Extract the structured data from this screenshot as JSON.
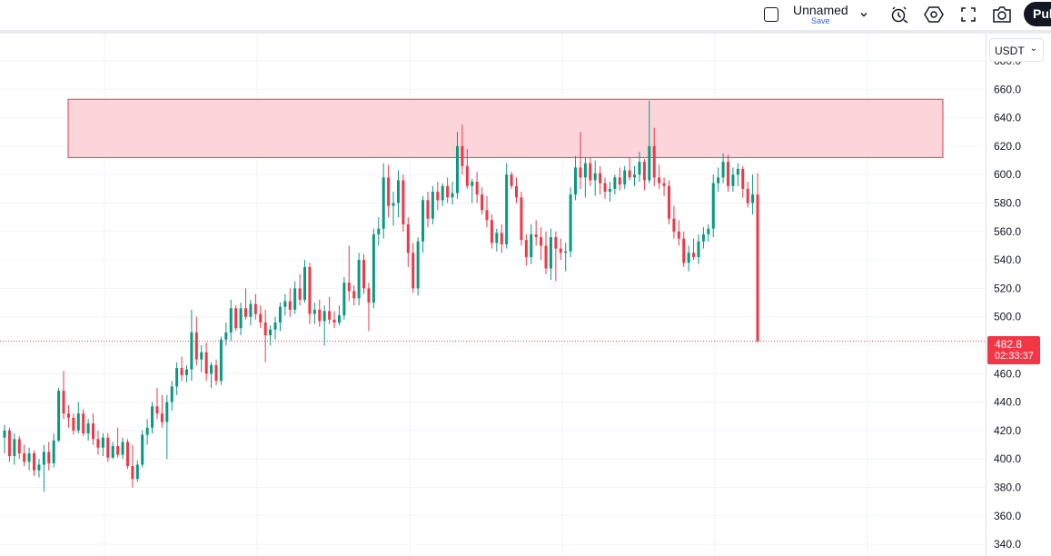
{
  "header": {
    "layout_name": "Unnamed",
    "save_label": "Save",
    "publish_label": "Pul",
    "icons": [
      "square-icon",
      "chevron-down-icon",
      "alert-add-icon",
      "settings-hexagon-icon",
      "fullscreen-icon",
      "camera-icon"
    ]
  },
  "currency_selector": {
    "label": "USDT"
  },
  "last_price": {
    "price": "482.8",
    "countdown": "02:33:37"
  },
  "colors": {
    "up": "#089981",
    "down": "#f23645",
    "zone_fill": "#fbd5d9",
    "zone_border": "#e0404f",
    "grid": "#f0f3fa",
    "accent_blue": "#2962ff"
  },
  "chart_data": {
    "type": "candlestick",
    "y_axis": {
      "ticks": [
        "680.0",
        "660.0",
        "640.0",
        "620.0",
        "600.0",
        "580.0",
        "560.0",
        "540.0",
        "520.0",
        "500.0",
        "480.0",
        "460.0",
        "440.0",
        "420.0",
        "400.0",
        "380.0",
        "360.0",
        "340.0"
      ],
      "range": [
        335,
        685
      ],
      "side": "right"
    },
    "resistance_zone": {
      "low": 612,
      "high": 653,
      "color": "#fbd5d9"
    },
    "last_price_line": 482.8,
    "candles": [
      {
        "o": 415,
        "h": 424,
        "l": 404,
        "c": 420
      },
      {
        "o": 420,
        "h": 422,
        "l": 398,
        "c": 402
      },
      {
        "o": 402,
        "h": 418,
        "l": 396,
        "c": 414
      },
      {
        "o": 414,
        "h": 416,
        "l": 400,
        "c": 404
      },
      {
        "o": 404,
        "h": 410,
        "l": 395,
        "c": 398
      },
      {
        "o": 398,
        "h": 408,
        "l": 392,
        "c": 404
      },
      {
        "o": 404,
        "h": 406,
        "l": 388,
        "c": 392
      },
      {
        "o": 392,
        "h": 400,
        "l": 387,
        "c": 396
      },
      {
        "o": 396,
        "h": 410,
        "l": 377,
        "c": 405
      },
      {
        "o": 405,
        "h": 412,
        "l": 392,
        "c": 397
      },
      {
        "o": 397,
        "h": 418,
        "l": 394,
        "c": 413
      },
      {
        "o": 413,
        "h": 450,
        "l": 412,
        "c": 448
      },
      {
        "o": 448,
        "h": 462,
        "l": 428,
        "c": 432
      },
      {
        "o": 432,
        "h": 438,
        "l": 422,
        "c": 429
      },
      {
        "o": 429,
        "h": 432,
        "l": 417,
        "c": 420
      },
      {
        "o": 420,
        "h": 440,
        "l": 418,
        "c": 432
      },
      {
        "o": 432,
        "h": 435,
        "l": 416,
        "c": 418
      },
      {
        "o": 418,
        "h": 428,
        "l": 413,
        "c": 425
      },
      {
        "o": 425,
        "h": 432,
        "l": 410,
        "c": 414
      },
      {
        "o": 414,
        "h": 420,
        "l": 403,
        "c": 408
      },
      {
        "o": 408,
        "h": 418,
        "l": 402,
        "c": 415
      },
      {
        "o": 415,
        "h": 418,
        "l": 398,
        "c": 401
      },
      {
        "o": 401,
        "h": 412,
        "l": 400,
        "c": 409
      },
      {
        "o": 409,
        "h": 422,
        "l": 401,
        "c": 403
      },
      {
        "o": 403,
        "h": 415,
        "l": 400,
        "c": 412
      },
      {
        "o": 412,
        "h": 414,
        "l": 393,
        "c": 395
      },
      {
        "o": 395,
        "h": 410,
        "l": 380,
        "c": 386
      },
      {
        "o": 386,
        "h": 399,
        "l": 384,
        "c": 396
      },
      {
        "o": 396,
        "h": 420,
        "l": 394,
        "c": 417
      },
      {
        "o": 417,
        "h": 428,
        "l": 410,
        "c": 422
      },
      {
        "o": 422,
        "h": 440,
        "l": 418,
        "c": 437
      },
      {
        "o": 437,
        "h": 450,
        "l": 428,
        "c": 432
      },
      {
        "o": 432,
        "h": 445,
        "l": 422,
        "c": 426
      },
      {
        "o": 426,
        "h": 445,
        "l": 400,
        "c": 440
      },
      {
        "o": 440,
        "h": 455,
        "l": 434,
        "c": 451
      },
      {
        "o": 451,
        "h": 468,
        "l": 445,
        "c": 464
      },
      {
        "o": 464,
        "h": 472,
        "l": 455,
        "c": 459
      },
      {
        "o": 459,
        "h": 466,
        "l": 454,
        "c": 463
      },
      {
        "o": 463,
        "h": 505,
        "l": 455,
        "c": 489
      },
      {
        "o": 489,
        "h": 500,
        "l": 466,
        "c": 470
      },
      {
        "o": 470,
        "h": 480,
        "l": 461,
        "c": 475
      },
      {
        "o": 475,
        "h": 482,
        "l": 455,
        "c": 460
      },
      {
        "o": 460,
        "h": 468,
        "l": 450,
        "c": 466
      },
      {
        "o": 466,
        "h": 470,
        "l": 452,
        "c": 455
      },
      {
        "o": 455,
        "h": 486,
        "l": 452,
        "c": 484
      },
      {
        "o": 484,
        "h": 496,
        "l": 480,
        "c": 489
      },
      {
        "o": 489,
        "h": 512,
        "l": 483,
        "c": 506
      },
      {
        "o": 506,
        "h": 508,
        "l": 490,
        "c": 492
      },
      {
        "o": 492,
        "h": 510,
        "l": 487,
        "c": 506
      },
      {
        "o": 506,
        "h": 520,
        "l": 498,
        "c": 500
      },
      {
        "o": 500,
        "h": 512,
        "l": 494,
        "c": 509
      },
      {
        "o": 509,
        "h": 516,
        "l": 498,
        "c": 502
      },
      {
        "o": 502,
        "h": 508,
        "l": 492,
        "c": 496
      },
      {
        "o": 496,
        "h": 505,
        "l": 468,
        "c": 487
      },
      {
        "o": 487,
        "h": 494,
        "l": 480,
        "c": 491
      },
      {
        "o": 491,
        "h": 500,
        "l": 484,
        "c": 496
      },
      {
        "o": 496,
        "h": 510,
        "l": 490,
        "c": 507
      },
      {
        "o": 507,
        "h": 516,
        "l": 501,
        "c": 511
      },
      {
        "o": 511,
        "h": 520,
        "l": 500,
        "c": 505
      },
      {
        "o": 505,
        "h": 525,
        "l": 502,
        "c": 520
      },
      {
        "o": 520,
        "h": 530,
        "l": 508,
        "c": 512
      },
      {
        "o": 512,
        "h": 540,
        "l": 510,
        "c": 535
      },
      {
        "o": 535,
        "h": 538,
        "l": 495,
        "c": 502
      },
      {
        "o": 502,
        "h": 510,
        "l": 495,
        "c": 505
      },
      {
        "o": 505,
        "h": 512,
        "l": 493,
        "c": 497
      },
      {
        "o": 497,
        "h": 508,
        "l": 480,
        "c": 504
      },
      {
        "o": 504,
        "h": 514,
        "l": 495,
        "c": 498
      },
      {
        "o": 498,
        "h": 504,
        "l": 492,
        "c": 496
      },
      {
        "o": 496,
        "h": 508,
        "l": 494,
        "c": 501
      },
      {
        "o": 501,
        "h": 528,
        "l": 498,
        "c": 524
      },
      {
        "o": 524,
        "h": 550,
        "l": 511,
        "c": 518
      },
      {
        "o": 518,
        "h": 522,
        "l": 508,
        "c": 513
      },
      {
        "o": 513,
        "h": 545,
        "l": 508,
        "c": 540
      },
      {
        "o": 540,
        "h": 544,
        "l": 516,
        "c": 520
      },
      {
        "o": 520,
        "h": 524,
        "l": 490,
        "c": 510
      },
      {
        "o": 510,
        "h": 562,
        "l": 506,
        "c": 558
      },
      {
        "o": 558,
        "h": 570,
        "l": 550,
        "c": 562
      },
      {
        "o": 562,
        "h": 608,
        "l": 555,
        "c": 598
      },
      {
        "o": 598,
        "h": 607,
        "l": 570,
        "c": 578
      },
      {
        "o": 578,
        "h": 588,
        "l": 564,
        "c": 580
      },
      {
        "o": 580,
        "h": 603,
        "l": 570,
        "c": 596
      },
      {
        "o": 596,
        "h": 600,
        "l": 560,
        "c": 565
      },
      {
        "o": 565,
        "h": 570,
        "l": 535,
        "c": 545
      },
      {
        "o": 545,
        "h": 552,
        "l": 517,
        "c": 520
      },
      {
        "o": 520,
        "h": 556,
        "l": 515,
        "c": 553
      },
      {
        "o": 553,
        "h": 585,
        "l": 545,
        "c": 582
      },
      {
        "o": 582,
        "h": 588,
        "l": 563,
        "c": 569
      },
      {
        "o": 569,
        "h": 592,
        "l": 565,
        "c": 588
      },
      {
        "o": 588,
        "h": 595,
        "l": 575,
        "c": 582
      },
      {
        "o": 582,
        "h": 594,
        "l": 578,
        "c": 592
      },
      {
        "o": 592,
        "h": 598,
        "l": 580,
        "c": 584
      },
      {
        "o": 584,
        "h": 595,
        "l": 579,
        "c": 587
      },
      {
        "o": 587,
        "h": 630,
        "l": 583,
        "c": 620
      },
      {
        "o": 620,
        "h": 635,
        "l": 600,
        "c": 606
      },
      {
        "o": 606,
        "h": 618,
        "l": 590,
        "c": 592
      },
      {
        "o": 592,
        "h": 597,
        "l": 580,
        "c": 595
      },
      {
        "o": 595,
        "h": 602,
        "l": 580,
        "c": 586
      },
      {
        "o": 586,
        "h": 591,
        "l": 572,
        "c": 575
      },
      {
        "o": 575,
        "h": 585,
        "l": 563,
        "c": 568
      },
      {
        "o": 568,
        "h": 572,
        "l": 548,
        "c": 552
      },
      {
        "o": 552,
        "h": 562,
        "l": 546,
        "c": 559
      },
      {
        "o": 559,
        "h": 565,
        "l": 545,
        "c": 551
      },
      {
        "o": 551,
        "h": 608,
        "l": 548,
        "c": 600
      },
      {
        "o": 600,
        "h": 602,
        "l": 590,
        "c": 592
      },
      {
        "o": 592,
        "h": 598,
        "l": 580,
        "c": 584
      },
      {
        "o": 584,
        "h": 588,
        "l": 550,
        "c": 554
      },
      {
        "o": 554,
        "h": 558,
        "l": 536,
        "c": 542
      },
      {
        "o": 542,
        "h": 565,
        "l": 537,
        "c": 558
      },
      {
        "o": 558,
        "h": 568,
        "l": 550,
        "c": 556
      },
      {
        "o": 556,
        "h": 563,
        "l": 540,
        "c": 550
      },
      {
        "o": 550,
        "h": 560,
        "l": 530,
        "c": 534
      },
      {
        "o": 534,
        "h": 562,
        "l": 526,
        "c": 556
      },
      {
        "o": 556,
        "h": 560,
        "l": 525,
        "c": 548
      },
      {
        "o": 548,
        "h": 555,
        "l": 540,
        "c": 545
      },
      {
        "o": 545,
        "h": 552,
        "l": 532,
        "c": 546
      },
      {
        "o": 546,
        "h": 591,
        "l": 542,
        "c": 586
      },
      {
        "o": 586,
        "h": 613,
        "l": 582,
        "c": 605
      },
      {
        "o": 605,
        "h": 630,
        "l": 590,
        "c": 598
      },
      {
        "o": 598,
        "h": 612,
        "l": 584,
        "c": 608
      },
      {
        "o": 608,
        "h": 612,
        "l": 592,
        "c": 596
      },
      {
        "o": 596,
        "h": 610,
        "l": 585,
        "c": 601
      },
      {
        "o": 601,
        "h": 606,
        "l": 586,
        "c": 594
      },
      {
        "o": 594,
        "h": 598,
        "l": 583,
        "c": 588
      },
      {
        "o": 588,
        "h": 595,
        "l": 581,
        "c": 590
      },
      {
        "o": 590,
        "h": 600,
        "l": 586,
        "c": 598
      },
      {
        "o": 598,
        "h": 605,
        "l": 589,
        "c": 593
      },
      {
        "o": 593,
        "h": 606,
        "l": 590,
        "c": 603
      },
      {
        "o": 603,
        "h": 612,
        "l": 596,
        "c": 598
      },
      {
        "o": 598,
        "h": 606,
        "l": 592,
        "c": 600
      },
      {
        "o": 600,
        "h": 616,
        "l": 595,
        "c": 609
      },
      {
        "o": 609,
        "h": 611,
        "l": 589,
        "c": 596
      },
      {
        "o": 596,
        "h": 652,
        "l": 594,
        "c": 620
      },
      {
        "o": 620,
        "h": 633,
        "l": 592,
        "c": 598
      },
      {
        "o": 598,
        "h": 607,
        "l": 590,
        "c": 594
      },
      {
        "o": 594,
        "h": 598,
        "l": 585,
        "c": 592
      },
      {
        "o": 592,
        "h": 596,
        "l": 565,
        "c": 569
      },
      {
        "o": 569,
        "h": 578,
        "l": 555,
        "c": 560
      },
      {
        "o": 560,
        "h": 568,
        "l": 550,
        "c": 555
      },
      {
        "o": 555,
        "h": 560,
        "l": 535,
        "c": 538
      },
      {
        "o": 538,
        "h": 550,
        "l": 532,
        "c": 545
      },
      {
        "o": 545,
        "h": 555,
        "l": 540,
        "c": 542
      },
      {
        "o": 542,
        "h": 558,
        "l": 537,
        "c": 553
      },
      {
        "o": 553,
        "h": 563,
        "l": 548,
        "c": 558
      },
      {
        "o": 558,
        "h": 565,
        "l": 553,
        "c": 562
      },
      {
        "o": 562,
        "h": 600,
        "l": 556,
        "c": 594
      },
      {
        "o": 594,
        "h": 605,
        "l": 588,
        "c": 598
      },
      {
        "o": 598,
        "h": 615,
        "l": 594,
        "c": 609
      },
      {
        "o": 609,
        "h": 614,
        "l": 588,
        "c": 592
      },
      {
        "o": 592,
        "h": 605,
        "l": 588,
        "c": 600
      },
      {
        "o": 600,
        "h": 608,
        "l": 592,
        "c": 604
      },
      {
        "o": 604,
        "h": 606,
        "l": 584,
        "c": 590
      },
      {
        "o": 590,
        "h": 595,
        "l": 577,
        "c": 580
      },
      {
        "o": 580,
        "h": 600,
        "l": 572,
        "c": 586
      },
      {
        "o": 586,
        "h": 601,
        "l": 482,
        "c": 482.8
      }
    ]
  }
}
